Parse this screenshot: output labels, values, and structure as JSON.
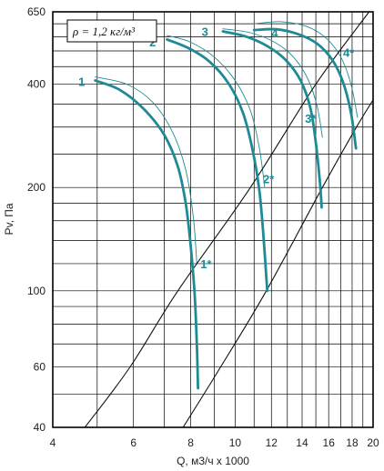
{
  "chart_data": {
    "type": "line",
    "xscale": "log",
    "yscale": "log",
    "xlim": [
      4,
      20
    ],
    "ylim": [
      40,
      650
    ],
    "x_ticks": [
      4,
      6,
      8,
      10,
      12,
      14,
      16,
      18,
      20
    ],
    "y_ticks": [
      40,
      60,
      100,
      200,
      400,
      650
    ],
    "xlabel": "Q, м3/ч х 1000",
    "ylabel": "Pv, Па",
    "legend_box": "ρ = 1,2 кг/м³",
    "grid": true,
    "colors": {
      "curve": "#1e8a96",
      "system": "#111111",
      "grid": "#000000"
    },
    "series": [
      {
        "name": "1",
        "kind": "main",
        "points": [
          [
            4.95,
            410
          ],
          [
            5.6,
            385
          ],
          [
            6.3,
            340
          ],
          [
            7.0,
            285
          ],
          [
            7.5,
            230
          ],
          [
            7.8,
            180
          ],
          [
            8.0,
            135
          ],
          [
            8.15,
            100
          ],
          [
            8.25,
            70
          ],
          [
            8.3,
            52
          ]
        ]
      },
      {
        "name": "1",
        "kind": "thin",
        "points": [
          [
            4.95,
            420
          ],
          [
            5.8,
            400
          ],
          [
            6.6,
            355
          ],
          [
            7.3,
            290
          ],
          [
            7.8,
            225
          ],
          [
            8.1,
            165
          ],
          [
            8.25,
            120
          ]
        ]
      },
      {
        "name": "2",
        "kind": "main",
        "points": [
          [
            7.1,
            540
          ],
          [
            7.9,
            510
          ],
          [
            8.8,
            465
          ],
          [
            9.7,
            400
          ],
          [
            10.4,
            330
          ],
          [
            10.9,
            260
          ],
          [
            11.3,
            195
          ],
          [
            11.55,
            140
          ],
          [
            11.75,
            100
          ]
        ]
      },
      {
        "name": "2",
        "kind": "thin",
        "points": [
          [
            7.1,
            555
          ],
          [
            8.0,
            530
          ],
          [
            9.0,
            480
          ],
          [
            10.0,
            410
          ],
          [
            10.8,
            335
          ],
          [
            11.3,
            260
          ],
          [
            11.6,
            200
          ]
        ]
      },
      {
        "name": "3",
        "kind": "main",
        "points": [
          [
            9.4,
            570
          ],
          [
            10.6,
            550
          ],
          [
            11.8,
            515
          ],
          [
            12.9,
            470
          ],
          [
            13.9,
            410
          ],
          [
            14.6,
            340
          ],
          [
            15.0,
            270
          ],
          [
            15.3,
            210
          ],
          [
            15.45,
            175
          ]
        ]
      },
      {
        "name": "3",
        "kind": "thin",
        "points": [
          [
            9.4,
            580
          ],
          [
            10.8,
            565
          ],
          [
            12.2,
            530
          ],
          [
            13.4,
            480
          ],
          [
            14.4,
            415
          ],
          [
            15.1,
            345
          ],
          [
            15.5,
            280
          ]
        ]
      },
      {
        "name": "4",
        "kind": "main",
        "points": [
          [
            11.0,
            575
          ],
          [
            12.3,
            578
          ],
          [
            13.7,
            560
          ],
          [
            15.1,
            525
          ],
          [
            16.3,
            470
          ],
          [
            17.2,
            405
          ],
          [
            17.9,
            330
          ],
          [
            18.35,
            260
          ]
        ]
      },
      {
        "name": "4",
        "kind": "thin",
        "points": [
          [
            11.0,
            600
          ],
          [
            12.6,
            608
          ],
          [
            14.3,
            590
          ],
          [
            15.8,
            545
          ],
          [
            17.0,
            480
          ],
          [
            17.9,
            400
          ],
          [
            18.5,
            320
          ]
        ]
      },
      {
        "name": "",
        "kind": "system",
        "points": [
          [
            4.7,
            40
          ],
          [
            5.9,
            60
          ],
          [
            7.5,
            100
          ],
          [
            10.8,
            200
          ],
          [
            15.0,
            400
          ],
          [
            19.6,
            650
          ]
        ]
      },
      {
        "name": "",
        "kind": "system",
        "points": [
          [
            7.7,
            40
          ],
          [
            9.3,
            60
          ],
          [
            11.7,
            100
          ],
          [
            15.5,
            200
          ],
          [
            18.4,
            300
          ],
          [
            20,
            360
          ]
        ]
      }
    ],
    "annotations": [
      {
        "text": "1",
        "x": 4.55,
        "y": 408
      },
      {
        "text": "2",
        "x": 6.5,
        "y": 532
      },
      {
        "text": "3",
        "x": 8.45,
        "y": 570
      },
      {
        "text": "4",
        "x": 12.0,
        "y": 565
      },
      {
        "text": "1*",
        "x": 8.4,
        "y": 120
      },
      {
        "text": "2*",
        "x": 11.5,
        "y": 212
      },
      {
        "text": "3*",
        "x": 14.2,
        "y": 318
      },
      {
        "text": "4*",
        "x": 17.2,
        "y": 495
      }
    ]
  }
}
